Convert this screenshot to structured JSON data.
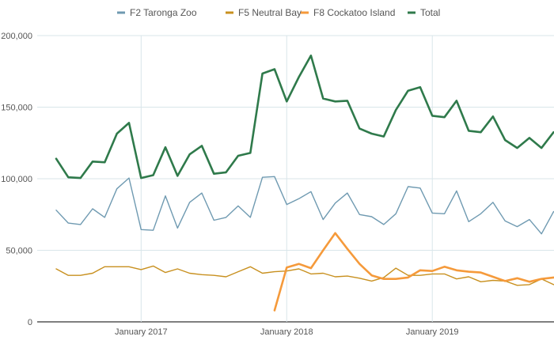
{
  "chart_data": {
    "type": "line",
    "x_ticks": [
      "January 2017",
      "January 2018",
      "January 2019"
    ],
    "y_ticks": [
      "0",
      "50,000",
      "100,000",
      "150,000",
      "200,000"
    ],
    "ylim": [
      0,
      200000
    ],
    "grid": true,
    "legend_position": "top",
    "x_start": "2016-06",
    "series": [
      {
        "name": "F2 Taronga Zoo",
        "color": "#6f9ab1",
        "start": "2016-06",
        "values": [
          78000,
          69000,
          68000,
          79000,
          73000,
          93000,
          100500,
          64500,
          64000,
          88000,
          65500,
          83500,
          90000,
          71000,
          73000,
          81000,
          73000,
          101000,
          101500,
          82000,
          86000,
          91000,
          71500,
          83000,
          90000,
          75000,
          73500,
          68000,
          75500,
          94500,
          93500,
          76000,
          75500,
          91500,
          70000,
          75500,
          83500,
          70500,
          66500,
          71500,
          61500,
          77000,
          76500
        ]
      },
      {
        "name": "F5 Neutral Bay",
        "color": "#c8901f",
        "start": "2016-06",
        "values": [
          37000,
          32500,
          32500,
          34000,
          38500,
          38500,
          38500,
          36500,
          39000,
          34500,
          37000,
          34000,
          33000,
          32500,
          31500,
          35000,
          38500,
          34000,
          35000,
          35500,
          37000,
          33500,
          34000,
          31500,
          32000,
          30500,
          28500,
          31000,
          37500,
          32500,
          32500,
          33500,
          33500,
          30000,
          31500,
          28000,
          29000,
          28500,
          25500,
          26000,
          30000,
          26000,
          26000
        ]
      },
      {
        "name": "F8 Cockatoo Island",
        "color": "#f59a3b",
        "start": "2017-12",
        "values": [
          8000,
          38000,
          40500,
          37500,
          50000,
          62000,
          51000,
          40500,
          32500,
          30000,
          30000,
          31000,
          36000,
          35500,
          38500,
          36000,
          35000,
          34500,
          31500,
          28500,
          30500,
          28000,
          30000,
          31000,
          31000,
          30000,
          29000
        ]
      },
      {
        "name": "Total",
        "color": "#2f7a4b",
        "start": "2016-06",
        "values": [
          114000,
          101000,
          100500,
          112000,
          111500,
          131500,
          139000,
          100500,
          102500,
          122000,
          102000,
          117000,
          123000,
          103500,
          104500,
          116000,
          118000,
          173500,
          176500,
          154000,
          171000,
          186000,
          156000,
          154000,
          154500,
          135000,
          131500,
          129500,
          148000,
          161500,
          164000,
          144000,
          143000,
          154500,
          133500,
          132500,
          143500,
          127000,
          121500,
          128500,
          121500,
          132500,
          131000
        ]
      }
    ]
  }
}
